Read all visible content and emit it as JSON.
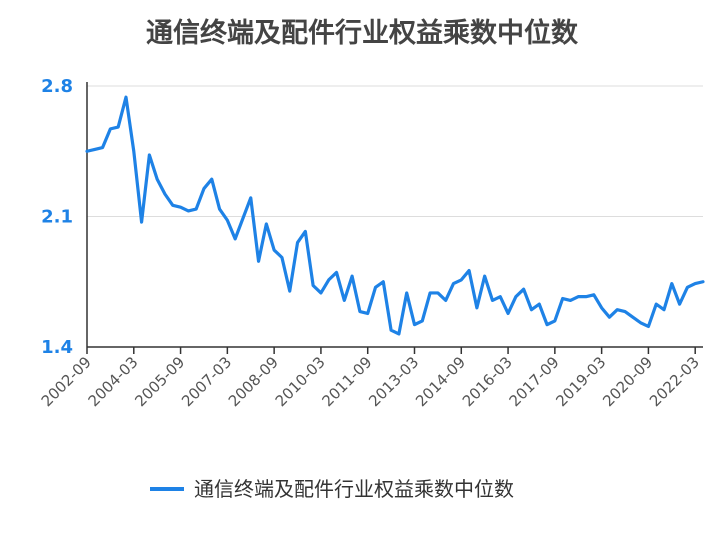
{
  "chart_data": {
    "type": "line",
    "title": "通信终端及配件行业权益乘数中位数",
    "xlabel": "",
    "ylabel": "",
    "ylim": [
      1.4,
      2.8
    ],
    "yticks": [
      "1.4",
      "2.1",
      "2.8"
    ],
    "grid": true,
    "legend_position": "bottom",
    "xtick_labels": [
      "2002-09",
      "2004-03",
      "2005-09",
      "2007-03",
      "2008-09",
      "2010-03",
      "2011-09",
      "2013-03",
      "2014-09",
      "2016-03",
      "2017-09",
      "2019-03",
      "2020-09",
      "2022-03"
    ],
    "line_color": "#1e82e6",
    "series": [
      {
        "name": "通信终端及配件行业权益乘数中位数",
        "values": [
          2.45,
          2.46,
          2.47,
          2.57,
          2.58,
          2.74,
          2.45,
          2.07,
          2.43,
          2.3,
          2.22,
          2.16,
          2.15,
          2.13,
          2.14,
          2.25,
          2.3,
          2.14,
          2.08,
          1.98,
          2.09,
          2.2,
          1.86,
          2.06,
          1.92,
          1.88,
          1.7,
          1.96,
          2.02,
          1.73,
          1.69,
          1.76,
          1.8,
          1.65,
          1.78,
          1.59,
          1.58,
          1.72,
          1.75,
          1.49,
          1.47,
          1.69,
          1.52,
          1.54,
          1.69,
          1.69,
          1.65,
          1.74,
          1.76,
          1.81,
          1.61,
          1.78,
          1.65,
          1.67,
          1.58,
          1.67,
          1.71,
          1.6,
          1.63,
          1.52,
          1.54,
          1.66,
          1.65,
          1.67,
          1.67,
          1.68,
          1.61,
          1.56,
          1.6,
          1.59,
          1.56,
          1.53,
          1.51,
          1.63,
          1.6,
          1.74,
          1.63,
          1.72,
          1.74,
          1.75
        ]
      }
    ]
  }
}
